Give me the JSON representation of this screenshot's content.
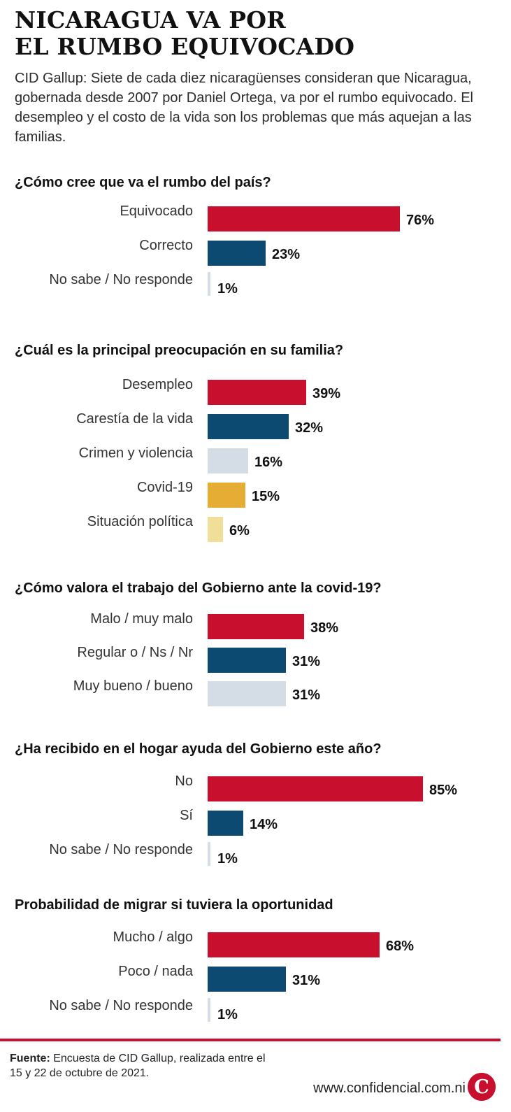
{
  "header": {
    "title_line1": "NICARAGUA VA POR",
    "title_line2": "EL RUMBO EQUIVOCADO",
    "subtitle": "CID Gallup: Siete de cada diez nicaragüenses consideran que Nicaragua, gobernada desde 2007 por Daniel Ortega, va por el rumbo equivocado. El desempleo y el costo de la vida son los problemas que más aquejan a las familias."
  },
  "colors": {
    "red": "#c8102e",
    "blue": "#0d4a72",
    "lightgray": "#d4dce5",
    "gold": "#e5ad33",
    "paleyellow": "#efdf98"
  },
  "chart_data": [
    {
      "type": "bar",
      "title": "¿Cómo cree que va el rumbo del país?",
      "categories": [
        "Equivocado",
        "Correcto",
        "No sabe / No responde"
      ],
      "values": [
        76,
        23,
        1
      ],
      "labels": [
        "76%",
        "23%",
        "1%"
      ],
      "colors": [
        "red",
        "blue",
        "lightgray"
      ],
      "xlim": [
        0,
        100
      ]
    },
    {
      "type": "bar",
      "title": "¿Cuál es la principal preocupación en su familia?",
      "categories": [
        "Desempleo",
        "Carestía de la vida",
        "Crimen y violencia",
        "Covid-19",
        "Situación política"
      ],
      "values": [
        39,
        32,
        16,
        15,
        6
      ],
      "labels": [
        "39%",
        "32%",
        "16%",
        "15%",
        "6%"
      ],
      "colors": [
        "red",
        "blue",
        "lightgray",
        "gold",
        "paleyellow"
      ],
      "xlim": [
        0,
        100
      ]
    },
    {
      "type": "bar",
      "title": "¿Cómo valora el trabajo del Gobierno ante la covid-19?",
      "categories": [
        "Malo / muy malo",
        "Regular o / Ns / Nr",
        "Muy bueno / bueno"
      ],
      "values": [
        38,
        31,
        31
      ],
      "labels": [
        "38%",
        "31%",
        "31%"
      ],
      "colors": [
        "red",
        "blue",
        "lightgray"
      ],
      "xlim": [
        0,
        100
      ]
    },
    {
      "type": "bar",
      "title": "¿Ha recibido en el hogar ayuda del Gobierno este año?",
      "categories": [
        "No",
        "Sí",
        "No sabe / No responde"
      ],
      "values": [
        85,
        14,
        1
      ],
      "labels": [
        "85%",
        "14%",
        "1%"
      ],
      "colors": [
        "red",
        "blue",
        "lightgray"
      ],
      "xlim": [
        0,
        100
      ]
    },
    {
      "type": "bar",
      "title": "Probabilidad de migrar si tuviera la oportunidad",
      "categories": [
        "Mucho / algo",
        "Poco / nada",
        "No sabe / No responde"
      ],
      "values": [
        68,
        31,
        1
      ],
      "labels": [
        "68%",
        "31%",
        "1%"
      ],
      "colors": [
        "red",
        "blue",
        "lightgray"
      ],
      "xlim": [
        0,
        100
      ]
    }
  ],
  "footer": {
    "source_label": "Fuente:",
    "source_text": " Encuesta de CID Gallup, realizada entre el 15 y 22 de octubre de 2021.",
    "website": "www.confidencial.com.ni",
    "logo_letter": "C"
  }
}
